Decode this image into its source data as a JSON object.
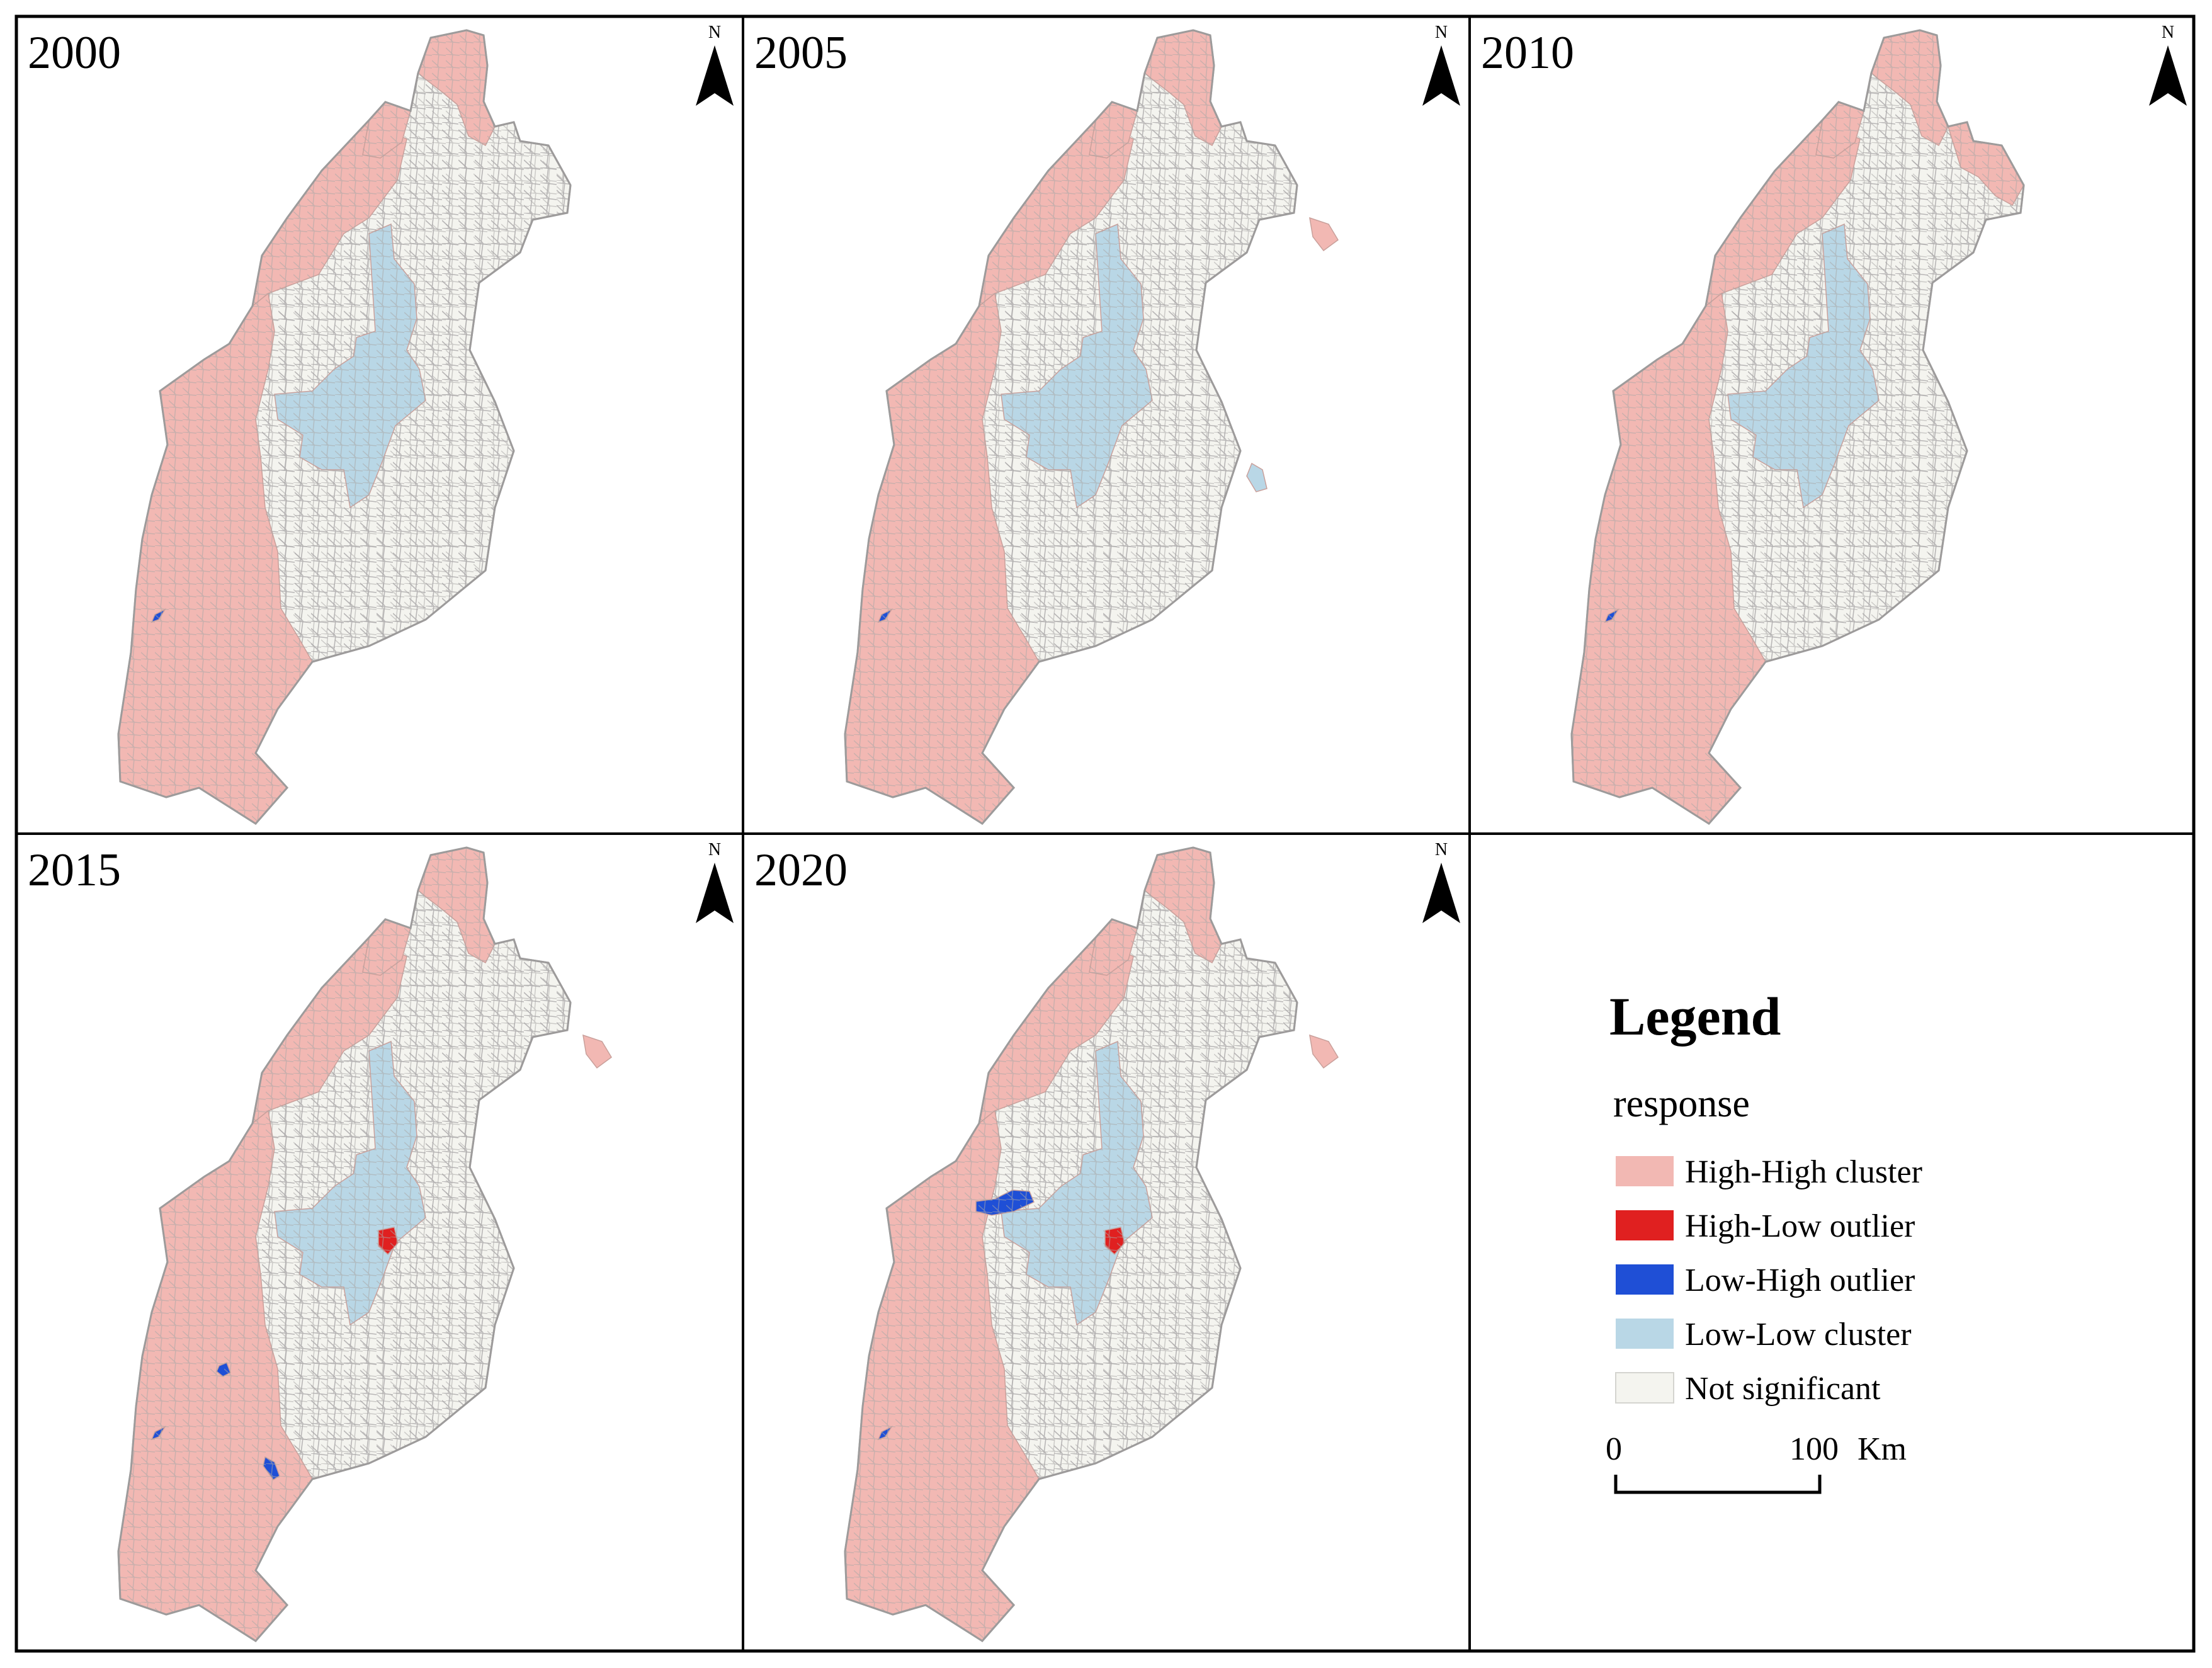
{
  "panels": [
    {
      "year": "2000",
      "north": "N",
      "highlights": {
        "hh_north": true,
        "hh_east": false,
        "hh_ne_extra": false,
        "ll_small": false,
        "lh_sw": true,
        "lh_mid": false,
        "lh_south": false,
        "lh_nw": false,
        "hl": false
      }
    },
    {
      "year": "2005",
      "north": "N",
      "highlights": {
        "hh_north": true,
        "hh_east": true,
        "hh_ne_extra": false,
        "ll_small": true,
        "lh_sw": true,
        "lh_mid": false,
        "lh_south": false,
        "lh_nw": false,
        "hl": false
      }
    },
    {
      "year": "2010",
      "north": "N",
      "highlights": {
        "hh_north": true,
        "hh_east": false,
        "hh_ne_extra": true,
        "ll_small": false,
        "lh_sw": true,
        "lh_mid": false,
        "lh_south": false,
        "lh_nw": false,
        "hl": false
      }
    },
    {
      "year": "2015",
      "north": "N",
      "highlights": {
        "hh_north": true,
        "hh_east": true,
        "hh_ne_extra": false,
        "ll_small": false,
        "lh_sw": true,
        "lh_mid": true,
        "lh_south": true,
        "lh_nw": false,
        "hl": true
      }
    },
    {
      "year": "2020",
      "north": "N",
      "highlights": {
        "hh_north": true,
        "hh_east": true,
        "hh_ne_extra": false,
        "ll_small": false,
        "lh_sw": true,
        "lh_mid": false,
        "lh_south": false,
        "lh_nw": true,
        "hl": true
      }
    }
  ],
  "legend": {
    "title": "Legend",
    "subtitle": "response",
    "items": [
      {
        "label": "High-High cluster",
        "color": "#f2b8b3"
      },
      {
        "label": "High-Low outlier",
        "color": "#e02020"
      },
      {
        "label": "Low-High outlier",
        "color": "#1f4fd6"
      },
      {
        "label": "Low-Low cluster",
        "color": "#b9d7e6"
      },
      {
        "label": "Not significant",
        "color": "#f4f4ef"
      }
    ],
    "scale": {
      "start": "0",
      "end": "100",
      "unit": "Km"
    }
  },
  "colors": {
    "border": "#b0aeae",
    "frame": "#000000"
  }
}
